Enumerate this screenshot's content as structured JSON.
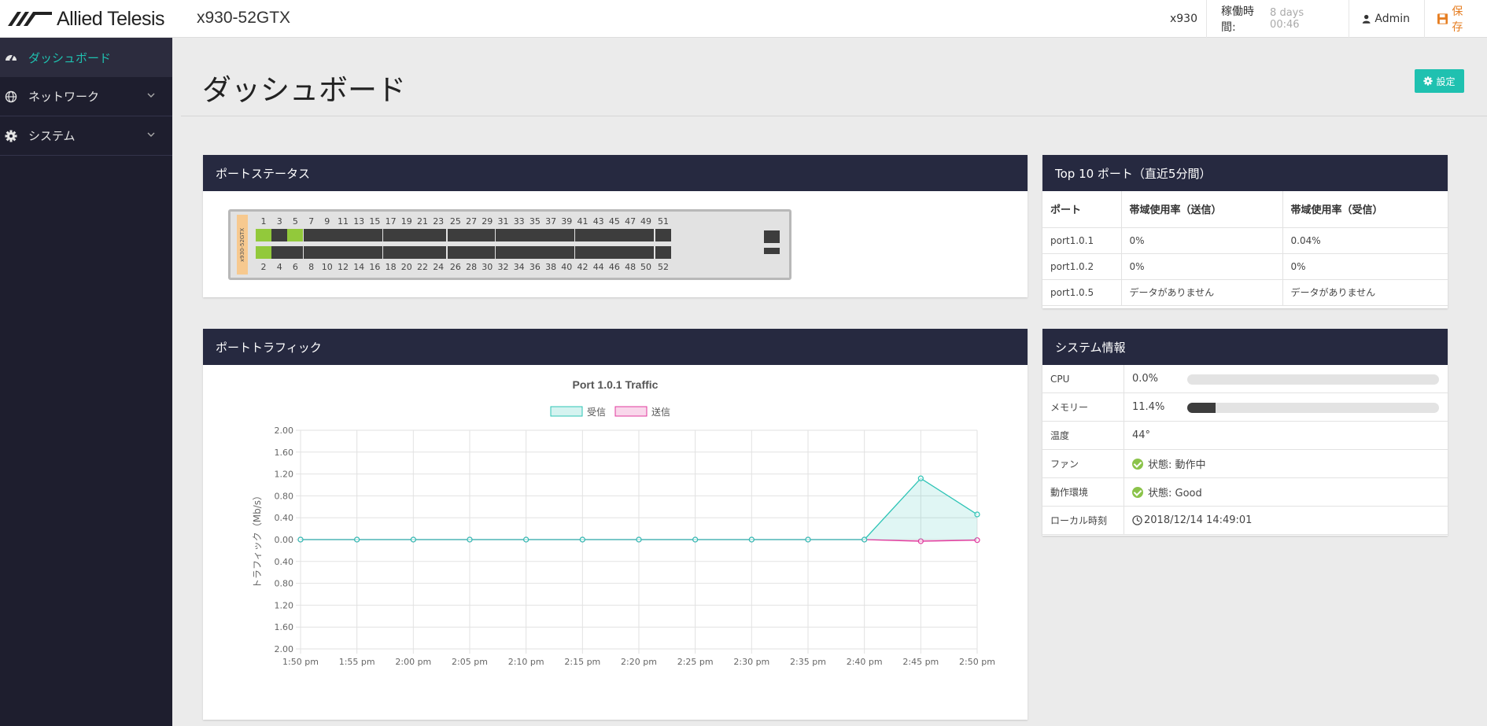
{
  "brand": {
    "logo_text": "Allied Telesis",
    "model": "x930-52GTX"
  },
  "topbar": {
    "host": "x930",
    "uptime_label": "稼働時間:",
    "uptime_value": "8 days 00:46",
    "user": "Admin",
    "save_label": "保存"
  },
  "sidebar": {
    "items": [
      {
        "label": "ダッシュボード",
        "icon": "dashboard-icon",
        "active": true
      },
      {
        "label": "ネットワーク",
        "icon": "globe-icon",
        "expandable": true
      },
      {
        "label": "システム",
        "icon": "gear-icon",
        "expandable": true
      }
    ]
  },
  "main": {
    "title": "ダッシュボード",
    "settings_label": "設定"
  },
  "port_status": {
    "title": "ポートステータス",
    "device_label": "x930-52GTX",
    "top_numbers": [
      "1",
      "3",
      "5",
      "7",
      "9",
      "11",
      "13",
      "15",
      "17",
      "19",
      "21",
      "23",
      "25",
      "27",
      "29",
      "31",
      "33",
      "35",
      "37",
      "39",
      "41",
      "43",
      "45",
      "47",
      "49",
      "51"
    ],
    "bottom_numbers": [
      "2",
      "4",
      "6",
      "8",
      "10",
      "12",
      "14",
      "16",
      "18",
      "20",
      "22",
      "24",
      "26",
      "28",
      "30",
      "32",
      "34",
      "36",
      "38",
      "40",
      "42",
      "44",
      "46",
      "48",
      "50",
      "52"
    ],
    "ports_up": [
      "1",
      "2",
      "5"
    ]
  },
  "top_ports": {
    "title": "Top 10 ポート（直近5分間）",
    "headers": [
      "ポート",
      "帯域使用率（送信）",
      "帯域使用率（受信）"
    ],
    "rows": [
      [
        "port1.0.1",
        "0%",
        "0.04%"
      ],
      [
        "port1.0.2",
        "0%",
        "0%"
      ],
      [
        "port1.0.5",
        "データがありません",
        "データがありません"
      ]
    ]
  },
  "traffic": {
    "panel_title": "ポートトラフィック"
  },
  "system_info": {
    "title": "システム情報",
    "rows": {
      "cpu": {
        "label": "CPU",
        "value": "0.0%",
        "fraction": 0.0
      },
      "memory": {
        "label": "メモリー",
        "value": "11.4%",
        "fraction": 0.114
      },
      "temp": {
        "label": "温度",
        "value": "44°"
      },
      "fan": {
        "label": "ファン",
        "value": "状態: 動作中"
      },
      "env": {
        "label": "動作環境",
        "value": "状態: Good"
      },
      "time": {
        "label": "ローカル時刻",
        "value": "2018/12/14 14:49:01"
      }
    }
  },
  "colors": {
    "accent": "#1fc1b0",
    "header": "#262940",
    "sidebar": "#1e1e2e",
    "save": "#e67e22",
    "rx": "#2ec4b6",
    "tx": "#e0399d"
  },
  "chart_data": {
    "type": "area",
    "title": "Port 1.0.1 Traffic",
    "ylabel": "トラフィック（Mb/s）",
    "xlabel": "",
    "x": [
      "1:50 pm",
      "1:55 pm",
      "2:00 pm",
      "2:05 pm",
      "2:10 pm",
      "2:15 pm",
      "2:20 pm",
      "2:25 pm",
      "2:30 pm",
      "2:35 pm",
      "2:40 pm",
      "2:45 pm",
      "2:50 pm"
    ],
    "y_ticks": [
      "2.00",
      "1.60",
      "1.20",
      "0.80",
      "0.40",
      "0.00",
      "0.40",
      "0.80",
      "1.20",
      "1.60",
      "2.00"
    ],
    "ylim": [
      -2,
      2
    ],
    "legend_position": "top",
    "series": [
      {
        "name": "受信",
        "values": [
          0,
          0,
          0,
          0,
          0,
          0,
          0,
          0,
          0,
          0,
          0,
          1.12,
          0.46
        ],
        "color": "#2ec4b6"
      },
      {
        "name": "送信",
        "values": [
          0,
          0,
          0,
          0,
          0,
          0,
          0,
          0,
          0,
          0,
          0,
          -0.03,
          -0.01
        ],
        "color": "#e0399d"
      }
    ],
    "grid": true
  }
}
